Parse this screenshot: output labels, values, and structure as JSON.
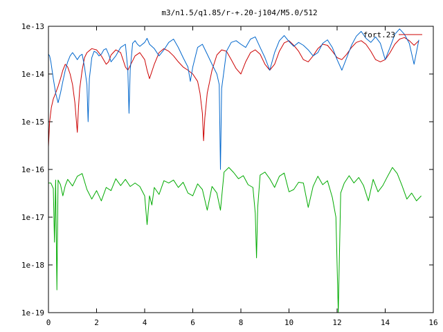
{
  "chart_data": {
    "type": "line",
    "title": "m3/n1.5/q1.85/r-+.20-j104/M5.0/512",
    "xlabel": "",
    "ylabel": "",
    "xlim": [
      0,
      16
    ],
    "ylim": [
      1e-19,
      1e-13
    ],
    "yscale": "log",
    "grid": false,
    "legend_position": "top-right",
    "x_ticks": [
      "0",
      "2",
      "4",
      "6",
      "8",
      "10",
      "12",
      "14",
      "16"
    ],
    "y_ticks": [
      "1e-13",
      "1e-14",
      "1e-15",
      "1e-16",
      "1e-17",
      "1e-18",
      "1e-19"
    ],
    "series": [
      {
        "name": "fort.23",
        "color": "#cc0000",
        "x": [
          0,
          0.05,
          0.12,
          0.2,
          0.3,
          0.4,
          0.5,
          0.6,
          0.7,
          0.8,
          0.9,
          1.0,
          1.1,
          1.15,
          1.2,
          1.25,
          1.3,
          1.4,
          1.5,
          1.6,
          1.8,
          2.0,
          2.2,
          2.4,
          2.5,
          2.6,
          2.8,
          3.0,
          3.1,
          3.2,
          3.3,
          3.4,
          3.6,
          3.8,
          4.0,
          4.1,
          4.2,
          4.4,
          4.6,
          4.8,
          5.0,
          5.2,
          5.4,
          5.6,
          5.8,
          6.0,
          6.2,
          6.3,
          6.4,
          6.45,
          6.5,
          6.6,
          6.8,
          7.0,
          7.2,
          7.4,
          7.6,
          7.8,
          8.0,
          8.2,
          8.4,
          8.6,
          8.8,
          9.0,
          9.2,
          9.4,
          9.6,
          9.8,
          10.0,
          10.2,
          10.4,
          10.6,
          10.8,
          11.0,
          11.2,
          11.4,
          11.6,
          11.8,
          12.0,
          12.2,
          12.4,
          12.6,
          12.8,
          13.0,
          13.2,
          13.4,
          13.6,
          13.8,
          14.0,
          14.2,
          14.4,
          14.6,
          14.8,
          15.0,
          15.2,
          15.4
        ],
        "y": [
          3e-16,
          1e-15,
          2e-15,
          3e-15,
          4e-15,
          5.5e-15,
          8e-15,
          1.2e-14,
          1.6e-14,
          1.4e-14,
          1e-14,
          6e-15,
          2.5e-15,
          1.2e-15,
          6e-16,
          2e-15,
          5e-15,
          1.2e-14,
          2.2e-14,
          2.8e-14,
          3.4e-14,
          3.2e-14,
          2.4e-14,
          1.6e-14,
          1.8e-14,
          2.5e-14,
          3.2e-14,
          2.8e-14,
          2e-14,
          1.4e-14,
          1.2e-14,
          1.5e-14,
          2.4e-14,
          2.8e-14,
          2e-14,
          1.2e-14,
          8e-15,
          1.6e-14,
          2.8e-14,
          3.4e-14,
          3e-14,
          2.4e-14,
          1.8e-14,
          1.4e-14,
          1.2e-14,
          1e-14,
          7e-15,
          4e-15,
          1.5e-15,
          4e-16,
          1.2e-15,
          4e-15,
          1.2e-14,
          2.5e-14,
          3.2e-14,
          3e-14,
          2e-14,
          1.3e-14,
          1e-14,
          1.8e-14,
          2.8e-14,
          3.2e-14,
          2.6e-14,
          1.6e-14,
          1.2e-14,
          1.6e-14,
          3e-14,
          4.5e-14,
          5e-14,
          4e-14,
          3e-14,
          2e-14,
          1.8e-14,
          2.4e-14,
          3.4e-14,
          4.2e-14,
          4e-14,
          3e-14,
          2.2e-14,
          2e-14,
          2.6e-14,
          3.6e-14,
          4.6e-14,
          5e-14,
          4.2e-14,
          3e-14,
          2e-14,
          1.8e-14,
          2e-14,
          2.8e-14,
          4.2e-14,
          5.4e-14,
          5.8e-14,
          5e-14,
          4e-14,
          5e-14
        ]
      },
      {
        "name": "",
        "color": "#0066cc",
        "x": [
          0,
          0.05,
          0.1,
          0.2,
          0.3,
          0.4,
          0.5,
          0.6,
          0.7,
          0.8,
          0.9,
          1.0,
          1.1,
          1.2,
          1.3,
          1.4,
          1.5,
          1.6,
          1.65,
          1.7,
          1.8,
          1.9,
          2.0,
          2.1,
          2.2,
          2.3,
          2.4,
          2.5,
          2.6,
          2.8,
          3.0,
          3.2,
          3.3,
          3.35,
          3.4,
          3.5,
          3.6,
          3.7,
          3.8,
          4.0,
          4.1,
          4.2,
          4.4,
          4.6,
          4.8,
          5.0,
          5.2,
          5.4,
          5.6,
          5.8,
          5.9,
          6.0,
          6.2,
          6.4,
          6.6,
          6.8,
          7.0,
          7.1,
          7.15,
          7.2,
          7.3,
          7.4,
          7.6,
          7.8,
          8.0,
          8.2,
          8.4,
          8.6,
          8.8,
          9.0,
          9.2,
          9.4,
          9.6,
          9.8,
          10.0,
          10.2,
          10.4,
          10.6,
          10.8,
          11.0,
          11.2,
          11.4,
          11.6,
          11.8,
          12.0,
          12.2,
          12.4,
          12.6,
          12.8,
          13.0,
          13.2,
          13.4,
          13.6,
          13.8,
          14.0,
          14.2,
          14.4,
          14.6,
          14.8,
          15.0,
          15.2,
          15.4
        ],
        "y": [
          2.6e-14,
          2.4e-14,
          1.8e-14,
          8e-15,
          4e-15,
          2.5e-15,
          4e-15,
          7e-15,
          1.2e-14,
          1.8e-14,
          2.4e-14,
          2.8e-14,
          2.4e-14,
          2e-14,
          2.4e-14,
          2.6e-14,
          1.4e-14,
          6e-15,
          1e-15,
          8e-15,
          2.2e-14,
          3e-14,
          2.8e-14,
          2.4e-14,
          2.6e-14,
          3.2e-14,
          3.4e-14,
          2.6e-14,
          1.8e-14,
          2.4e-14,
          3.6e-14,
          4.2e-14,
          1.2e-14,
          1.5e-15,
          1.2e-14,
          4.4e-14,
          5e-14,
          4.2e-14,
          3.8e-14,
          4.6e-14,
          5.6e-14,
          4.2e-14,
          3.4e-14,
          2.4e-14,
          3.2e-14,
          4.6e-14,
          5.4e-14,
          3.6e-14,
          2.2e-14,
          1.4e-14,
          7e-15,
          1.4e-14,
          3.6e-14,
          4.2e-14,
          2.6e-14,
          1.6e-14,
          1e-14,
          6e-15,
          1e-16,
          5e-15,
          1.2e-14,
          3e-14,
          4.6e-14,
          5e-14,
          4.2e-14,
          3.6e-14,
          5.4e-14,
          6e-14,
          3.6e-14,
          2.2e-14,
          1.2e-14,
          2.8e-14,
          5e-14,
          6.4e-14,
          4.8e-14,
          3.8e-14,
          4.6e-14,
          4e-14,
          3.2e-14,
          2.4e-14,
          2.8e-14,
          4.4e-14,
          5.2e-14,
          3.6e-14,
          2e-14,
          1.2e-14,
          2.2e-14,
          4e-14,
          6.2e-14,
          7.8e-14,
          5.6e-14,
          4.6e-14,
          6e-14,
          4.4e-14,
          2e-14,
          3.6e-14,
          6.8e-14,
          8.8e-14,
          6.8e-14,
          4.4e-14,
          1.6e-14,
          5.2e-14
        ]
      },
      {
        "name": "",
        "color": "#00aa00",
        "x": [
          0,
          0.1,
          0.2,
          0.25,
          0.3,
          0.35,
          0.4,
          0.5,
          0.6,
          0.7,
          0.8,
          1.0,
          1.2,
          1.4,
          1.6,
          1.8,
          2.0,
          2.2,
          2.4,
          2.6,
          2.8,
          3.0,
          3.2,
          3.4,
          3.6,
          3.8,
          4.0,
          4.1,
          4.2,
          4.3,
          4.4,
          4.6,
          4.8,
          5.0,
          5.2,
          5.4,
          5.6,
          5.8,
          6.0,
          6.2,
          6.4,
          6.6,
          6.8,
          7.0,
          7.15,
          7.3,
          7.5,
          7.7,
          7.9,
          8.1,
          8.3,
          8.5,
          8.6,
          8.65,
          8.7,
          8.8,
          9.0,
          9.2,
          9.4,
          9.6,
          9.8,
          10.0,
          10.2,
          10.4,
          10.6,
          10.8,
          11.0,
          11.2,
          11.4,
          11.6,
          11.8,
          11.95,
          12.05,
          12.15,
          12.3,
          12.5,
          12.7,
          12.9,
          13.1,
          13.3,
          13.5,
          13.7,
          13.9,
          14.1,
          14.3,
          14.5,
          14.7,
          14.9,
          15.1,
          15.3,
          15.5
        ],
        "y": [
          5.2e-17,
          5.2e-17,
          4e-17,
          3e-18,
          6e-17,
          3e-19,
          6e-17,
          4.8e-17,
          2.8e-17,
          4.6e-17,
          6.2e-17,
          4.5e-17,
          7.2e-17,
          8.2e-17,
          3.8e-17,
          2.4e-17,
          3.6e-17,
          2.2e-17,
          4.2e-17,
          3.6e-17,
          6.4e-17,
          4.6e-17,
          6.2e-17,
          4.4e-17,
          5.2e-17,
          4.4e-17,
          2.8e-17,
          7e-18,
          2.8e-17,
          1.8e-17,
          4.2e-17,
          3e-17,
          5.8e-17,
          5.2e-17,
          6e-17,
          4.2e-17,
          5.4e-17,
          3.2e-17,
          2.8e-17,
          5e-17,
          3.8e-17,
          1.4e-17,
          4.4e-17,
          3.2e-17,
          1.4e-17,
          8.8e-17,
          1.1e-16,
          8.6e-17,
          6.4e-17,
          7.4e-17,
          4.8e-17,
          4.2e-17,
          1.2e-17,
          1.4e-18,
          1.6e-17,
          7.6e-17,
          8.8e-17,
          6.4e-17,
          4.2e-17,
          7.2e-17,
          8.4e-17,
          3.4e-17,
          3.8e-17,
          5.4e-17,
          5.2e-17,
          1.6e-17,
          4.4e-17,
          7.2e-17,
          4.8e-17,
          5.8e-17,
          2.6e-17,
          1e-17,
          1e-19,
          3.2e-17,
          5.2e-17,
          7.4e-17,
          5.2e-17,
          6.8e-17,
          4.6e-17,
          2.2e-17,
          6.2e-17,
          3.4e-17,
          4.6e-17,
          7.2e-17,
          1.1e-16,
          8.2e-17,
          4.6e-17,
          2.4e-17,
          3.2e-17,
          2.2e-17,
          2.8e-17
        ]
      }
    ]
  }
}
